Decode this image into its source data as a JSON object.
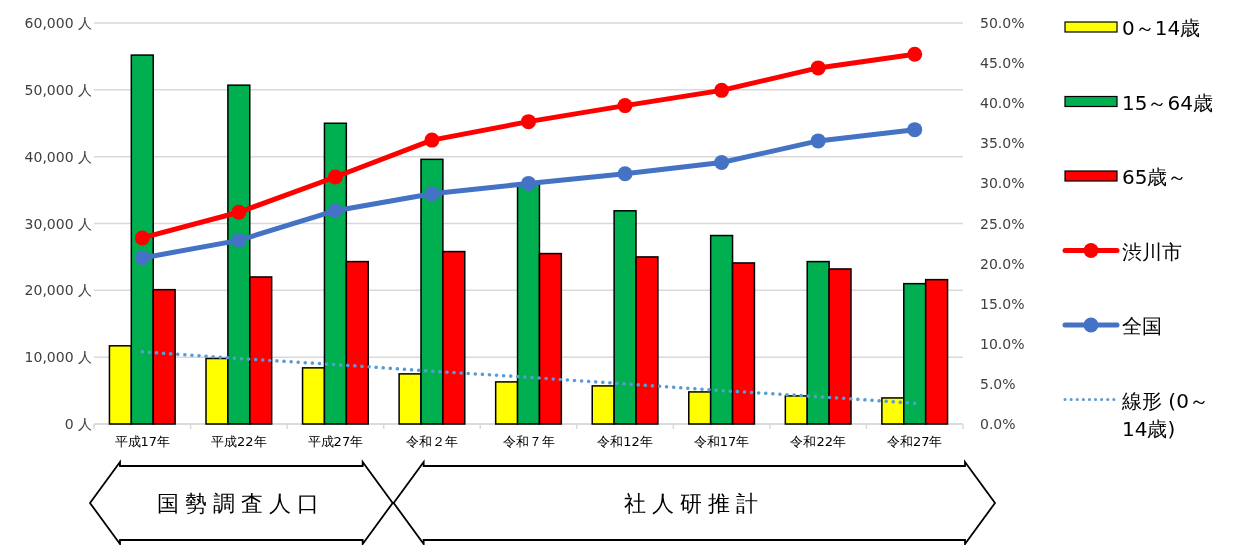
{
  "chart_data": {
    "type": "bar",
    "categories": [
      "平成17年",
      "平成22年",
      "平成27年",
      "令和２年",
      "令和７年",
      "令和12年",
      "令和17年",
      "令和22年",
      "令和27年"
    ],
    "series": [
      {
        "name": "0～14歳",
        "type": "bar",
        "color": "#ffff00",
        "values": [
          11700,
          9800,
          8400,
          7500,
          6300,
          5700,
          4800,
          4200,
          3900
        ]
      },
      {
        "name": "15～64歳",
        "type": "bar",
        "color": "#00b050",
        "values": [
          55200,
          50700,
          45000,
          39600,
          36000,
          31900,
          28200,
          24300,
          21000
        ]
      },
      {
        "name": "65歳～",
        "type": "bar",
        "color": "#ff0000",
        "values": [
          20100,
          22000,
          24300,
          25800,
          25500,
          25000,
          24100,
          23200,
          21600
        ]
      },
      {
        "name": "渋川市",
        "type": "line",
        "axis": "y2",
        "marker": "circle",
        "color": "#ff0000",
        "values": [
          23.2,
          26.4,
          30.8,
          35.4,
          37.7,
          39.7,
          41.6,
          44.4,
          46.1
        ]
      },
      {
        "name": "全国",
        "type": "line",
        "axis": "y2",
        "marker": "circle",
        "color": "#4472c4",
        "values": [
          20.7,
          22.9,
          26.6,
          28.7,
          30.0,
          31.2,
          32.6,
          35.3,
          36.7
        ]
      },
      {
        "name": "線形 (0～14歳)",
        "type": "line",
        "line_style": "dotted",
        "marker": "none",
        "color": "#5b9bd5",
        "values": [
          10800,
          9800,
          8900,
          7900,
          7000,
          6000,
          5000,
          4100,
          3100
        ]
      }
    ],
    "ylim": [
      0,
      60000
    ],
    "yticks": [
      {
        "value": 0,
        "label": "0 人"
      },
      {
        "value": 10000,
        "label": "10,000 人"
      },
      {
        "value": 20000,
        "label": "20,000 人"
      },
      {
        "value": 30000,
        "label": "30,000 人"
      },
      {
        "value": 40000,
        "label": "40,000 人"
      },
      {
        "value": 50000,
        "label": "50,000 人"
      },
      {
        "value": 60000,
        "label": "60,000 人"
      }
    ],
    "y2lim": [
      0,
      50
    ],
    "y2ticks": [
      {
        "value": 0,
        "label": "0.0%"
      },
      {
        "value": 5,
        "label": "5.0%"
      },
      {
        "value": 10,
        "label": "10.0%"
      },
      {
        "value": 15,
        "label": "15.0%"
      },
      {
        "value": 20,
        "label": "20.0%"
      },
      {
        "value": 25,
        "label": "25.0%"
      },
      {
        "value": 30,
        "label": "30.0%"
      },
      {
        "value": 35,
        "label": "35.0%"
      },
      {
        "value": 40,
        "label": "40.0%"
      },
      {
        "value": 45,
        "label": "45.0%"
      },
      {
        "value": 50,
        "label": "50.0%"
      }
    ],
    "grid": "y",
    "legend": "right",
    "annotations": [
      "国勢調査人口",
      "社人研推計"
    ]
  }
}
